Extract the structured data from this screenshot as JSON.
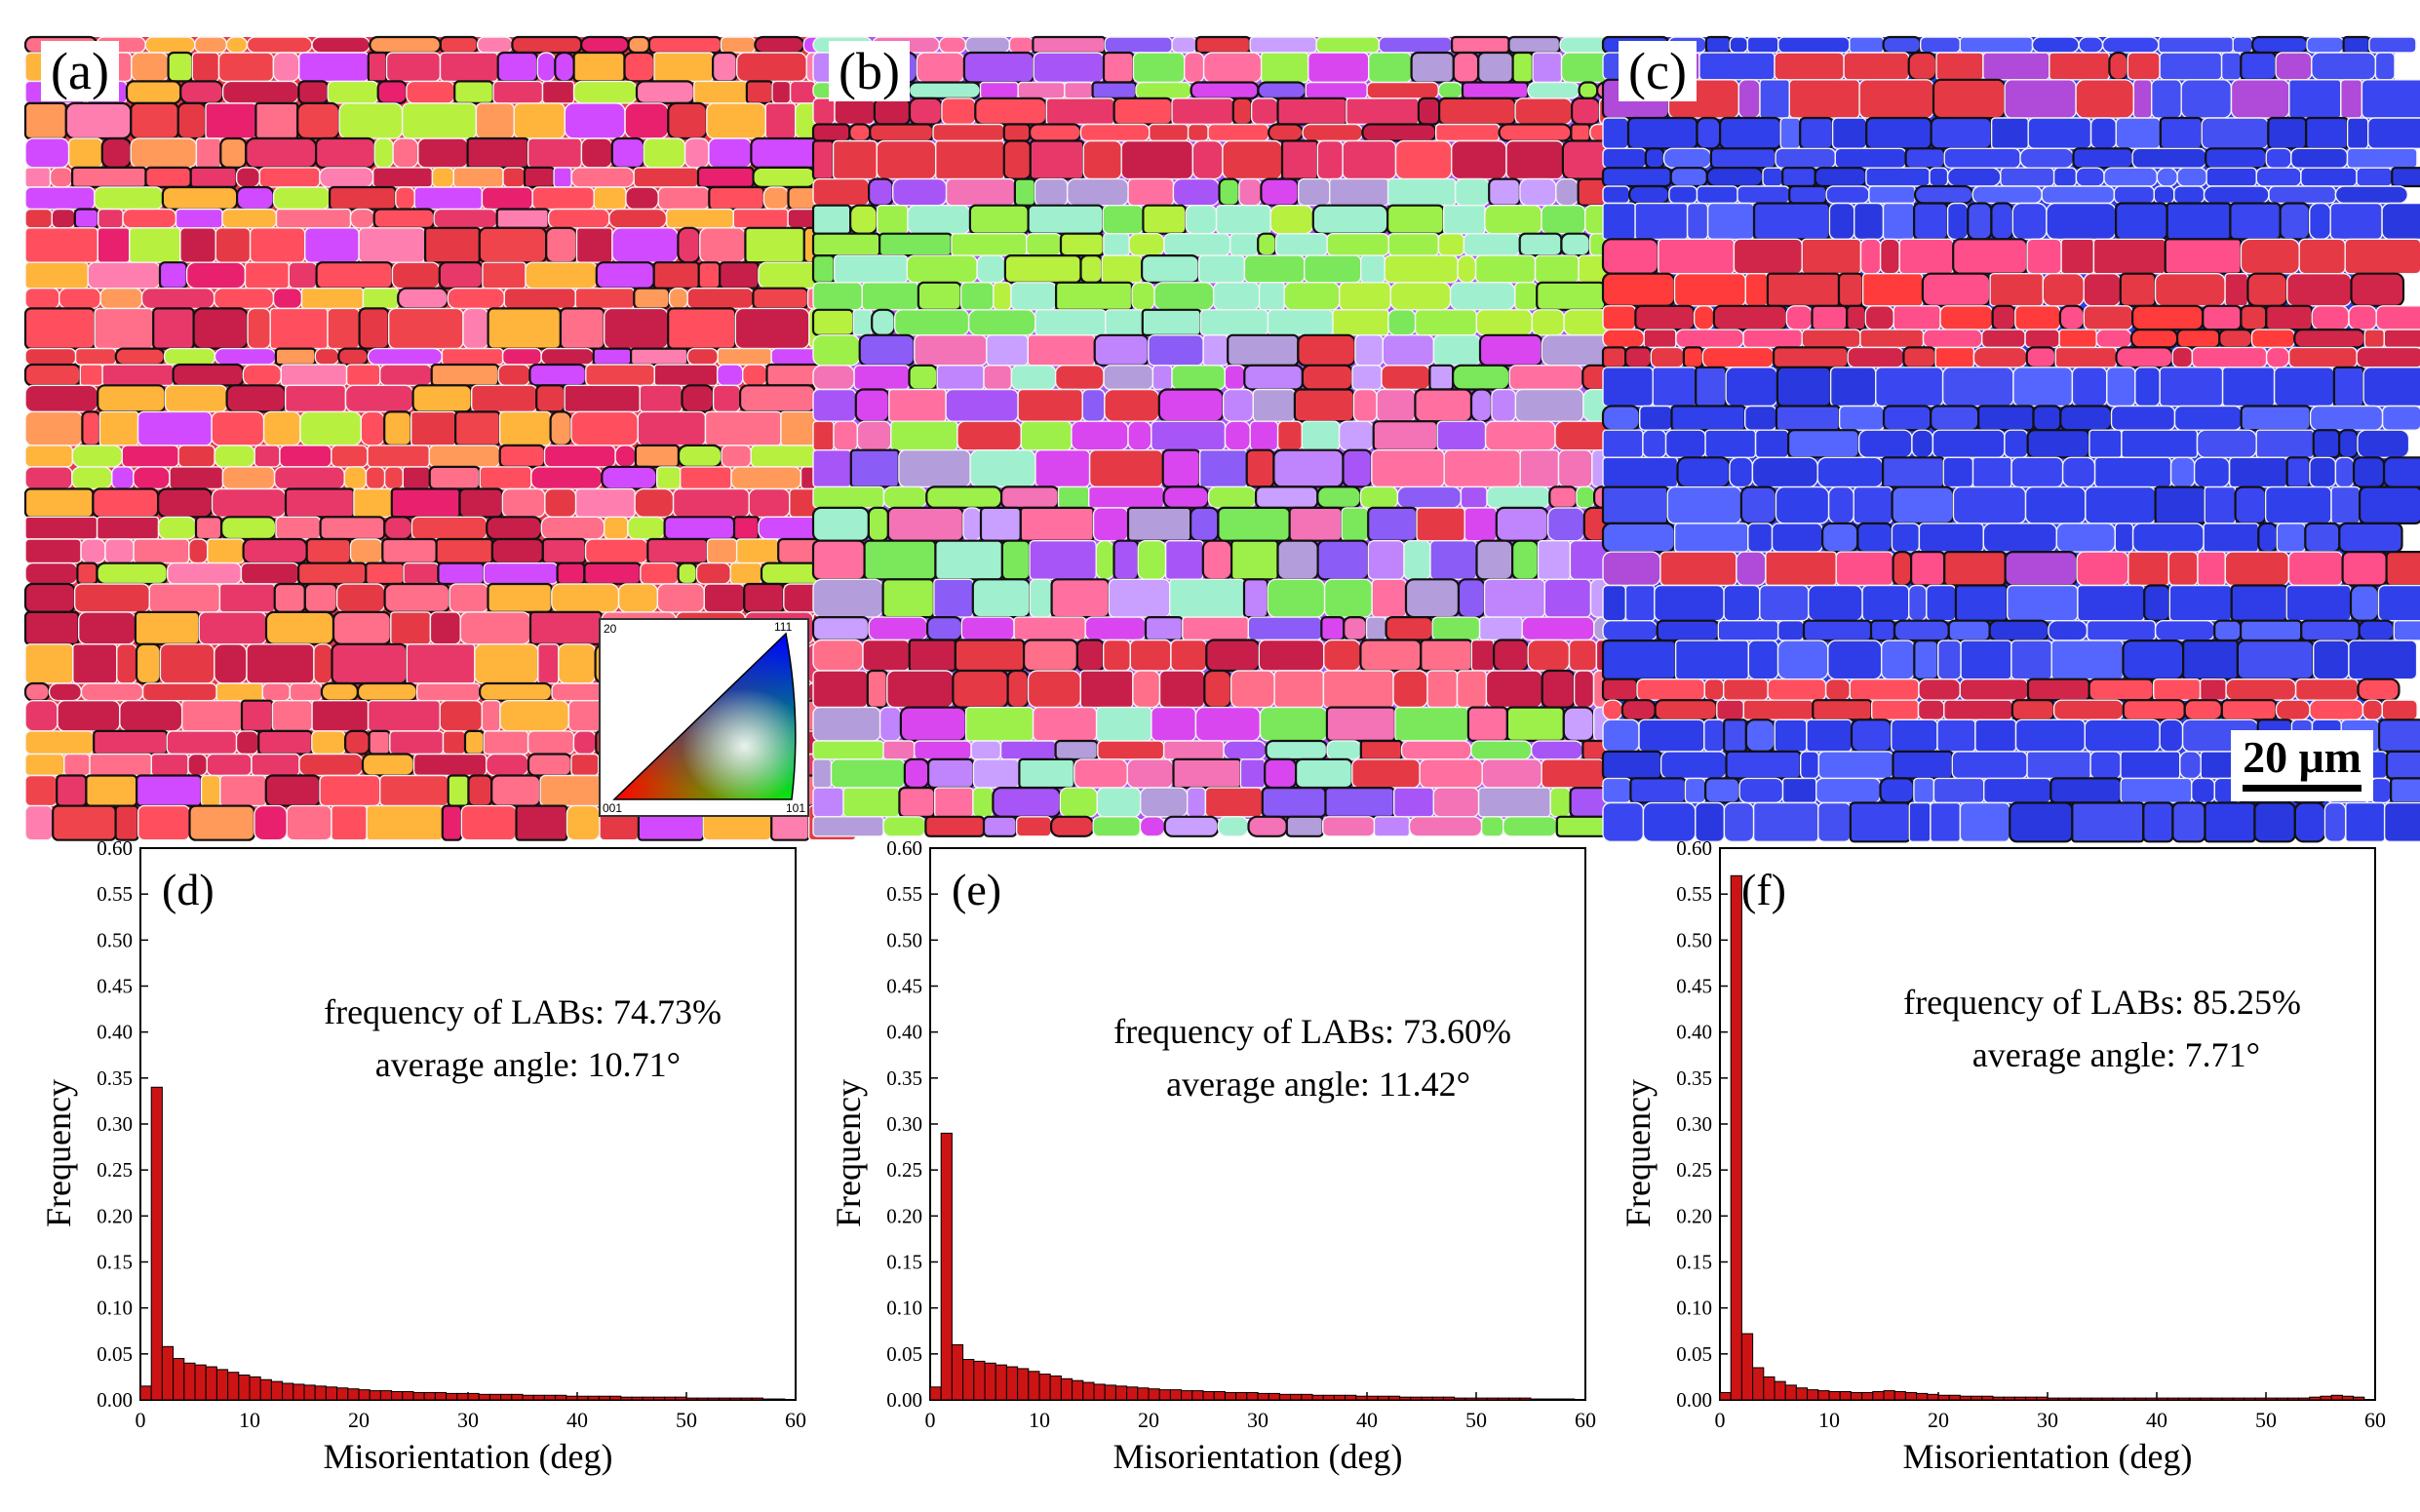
{
  "maps": [
    {
      "label": "(a)",
      "colors": [
        "#e63946",
        "#f0444c",
        "#e8386a",
        "#ff6f8a",
        "#ff9a5a",
        "#e8206e",
        "#ff4f5e",
        "#c81f4a",
        "#ffb43c",
        "#b8f040",
        "#d14aff",
        "#ff7eb0"
      ]
    },
    {
      "label": "(b)",
      "colors": [
        "#a855f7",
        "#c084fc",
        "#8b5cf6",
        "#d946ef",
        "#9df04a",
        "#7ae85a",
        "#e63946",
        "#f472b6",
        "#b39ddb",
        "#a0f0d0",
        "#c9a0ff",
        "#ff6fa0"
      ]
    },
    {
      "label": "(c)",
      "colors": [
        "#2f3de8",
        "#3a46f0",
        "#4450f2",
        "#2a38e0",
        "#5566ff",
        "#3040ea"
      ]
    }
  ],
  "ipf_key": {
    "corner_001": "001",
    "corner_101": "101",
    "corner_111": "111",
    "corner_tl": "20"
  },
  "scale_bar": {
    "label": "20 μm"
  },
  "chart_data": [
    {
      "type": "bar",
      "label": "(d)",
      "xlabel": "Misorientation (deg)",
      "ylabel": "Frequency",
      "xlim": [
        0,
        60
      ],
      "ylim": [
        0,
        0.6
      ],
      "xticks": [
        "0",
        "10",
        "20",
        "30",
        "40",
        "50",
        "60"
      ],
      "yticks": [
        "0.00",
        "0.05",
        "0.10",
        "0.15",
        "0.20",
        "0.25",
        "0.30",
        "0.35",
        "0.40",
        "0.45",
        "0.50",
        "0.55",
        "0.60"
      ],
      "annotation1": "frequency of LABs: 74.73%",
      "annotation2": "average angle: 10.71°",
      "values": [
        0.015,
        0.34,
        0.058,
        0.045,
        0.04,
        0.038,
        0.036,
        0.033,
        0.03,
        0.027,
        0.025,
        0.022,
        0.02,
        0.018,
        0.017,
        0.016,
        0.015,
        0.014,
        0.013,
        0.012,
        0.011,
        0.01,
        0.01,
        0.009,
        0.009,
        0.008,
        0.008,
        0.008,
        0.007,
        0.007,
        0.007,
        0.006,
        0.006,
        0.006,
        0.006,
        0.005,
        0.005,
        0.005,
        0.005,
        0.004,
        0.004,
        0.004,
        0.004,
        0.004,
        0.003,
        0.003,
        0.003,
        0.003,
        0.003,
        0.003,
        0.002,
        0.002,
        0.002,
        0.002,
        0.002,
        0.002,
        0.002,
        0.001,
        0.001
      ]
    },
    {
      "type": "bar",
      "label": "(e)",
      "xlabel": "Misorientation (deg)",
      "ylabel": "Frequency",
      "xlim": [
        0,
        60
      ],
      "ylim": [
        0,
        0.6
      ],
      "xticks": [
        "0",
        "10",
        "20",
        "30",
        "40",
        "50",
        "60"
      ],
      "yticks": [
        "0.00",
        "0.05",
        "0.10",
        "0.15",
        "0.20",
        "0.25",
        "0.30",
        "0.35",
        "0.40",
        "0.45",
        "0.50",
        "0.55",
        "0.60"
      ],
      "annotation1": "frequency of LABs: 73.60%",
      "annotation2": "average angle: 11.42°",
      "values": [
        0.014,
        0.29,
        0.06,
        0.044,
        0.042,
        0.04,
        0.038,
        0.036,
        0.034,
        0.031,
        0.028,
        0.026,
        0.023,
        0.021,
        0.019,
        0.017,
        0.016,
        0.015,
        0.014,
        0.013,
        0.012,
        0.011,
        0.011,
        0.01,
        0.01,
        0.009,
        0.009,
        0.008,
        0.008,
        0.008,
        0.007,
        0.007,
        0.006,
        0.006,
        0.006,
        0.005,
        0.005,
        0.005,
        0.005,
        0.004,
        0.004,
        0.004,
        0.004,
        0.003,
        0.003,
        0.003,
        0.003,
        0.003,
        0.002,
        0.002,
        0.002,
        0.002,
        0.002,
        0.002,
        0.002,
        0.001,
        0.001,
        0.001,
        0.001
      ]
    },
    {
      "type": "bar",
      "label": "(f)",
      "xlabel": "Misorientation (deg)",
      "ylabel": "Frequency",
      "xlim": [
        0,
        60
      ],
      "ylim": [
        0,
        0.6
      ],
      "xticks": [
        "0",
        "10",
        "20",
        "30",
        "40",
        "50",
        "60"
      ],
      "yticks": [
        "0.00",
        "0.05",
        "0.10",
        "0.15",
        "0.20",
        "0.25",
        "0.30",
        "0.35",
        "0.40",
        "0.45",
        "0.50",
        "0.55",
        "0.60"
      ],
      "annotation1": "frequency of LABs: 85.25%",
      "annotation2": "average angle: 7.71°",
      "values": [
        0.008,
        0.57,
        0.072,
        0.035,
        0.025,
        0.02,
        0.016,
        0.013,
        0.011,
        0.01,
        0.009,
        0.009,
        0.008,
        0.008,
        0.009,
        0.01,
        0.009,
        0.008,
        0.007,
        0.006,
        0.005,
        0.005,
        0.004,
        0.004,
        0.004,
        0.003,
        0.003,
        0.003,
        0.003,
        0.003,
        0.002,
        0.002,
        0.002,
        0.002,
        0.002,
        0.002,
        0.002,
        0.002,
        0.002,
        0.002,
        0.002,
        0.002,
        0.002,
        0.002,
        0.002,
        0.002,
        0.002,
        0.002,
        0.002,
        0.002,
        0.002,
        0.002,
        0.002,
        0.002,
        0.003,
        0.004,
        0.005,
        0.004,
        0.003
      ]
    }
  ]
}
